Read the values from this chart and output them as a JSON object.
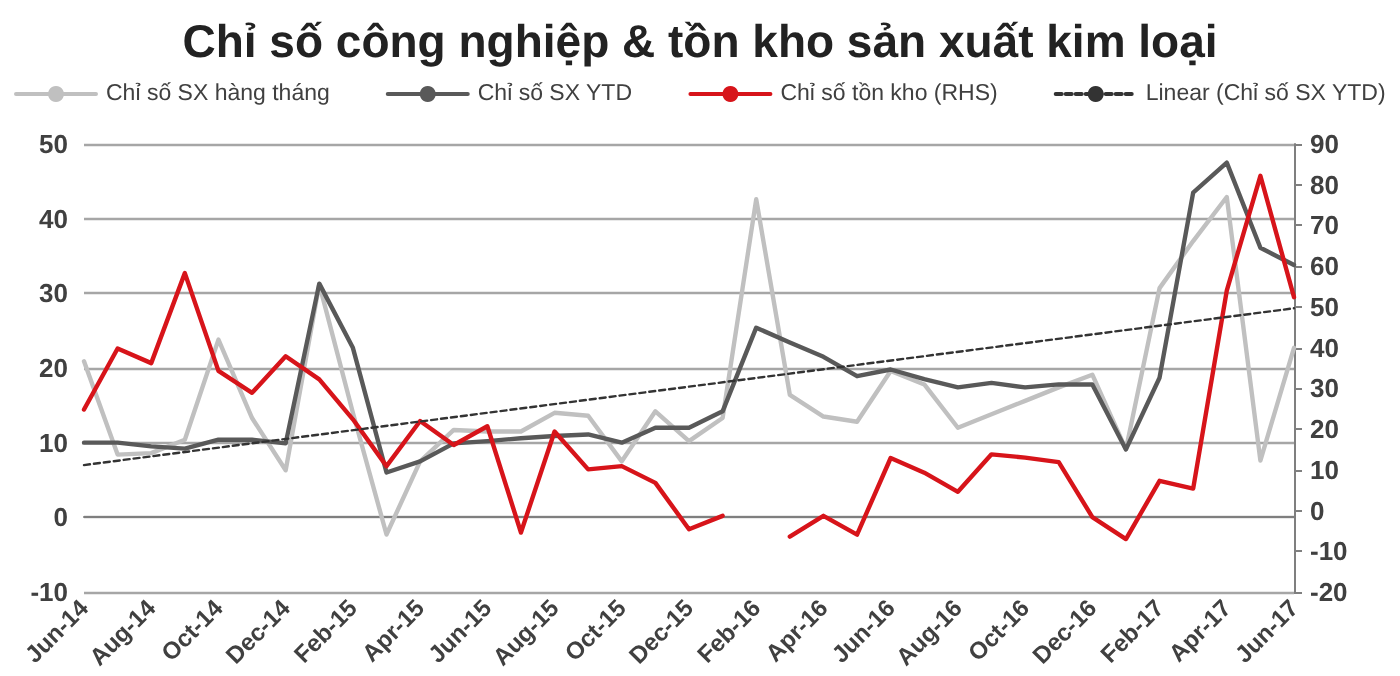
{
  "chart_data": {
    "type": "line",
    "title": "Chỉ số công nghiệp & tồn kho sản xuất kim loại",
    "categories": [
      "Jun-14",
      null,
      "Aug-14",
      null,
      "Oct-14",
      null,
      "Dec-14",
      null,
      "Feb-15",
      null,
      "Apr-15",
      null,
      "Jun-15",
      null,
      "Aug-15",
      null,
      "Oct-15",
      null,
      "Dec-15",
      null,
      "Feb-16",
      null,
      "Apr-16",
      null,
      "Jun-16",
      null,
      "Aug-16",
      null,
      "Oct-16",
      null,
      "Dec-16",
      null,
      "Feb-17",
      null,
      "Apr-17",
      null,
      "Jun-17"
    ],
    "series": [
      {
        "name": "Chỉ số SX hàng tháng",
        "color": "#c0c0c0",
        "values": [
          20.9,
          8.4,
          8.6,
          10.4,
          23.8,
          13.3,
          6.3,
          31.2,
          14,
          -2.3,
          7.5,
          11.7,
          11.5,
          11.5,
          14,
          13.6,
          7.5,
          14.2,
          10.2,
          13.3,
          42.6,
          16.4,
          13.5,
          12.8,
          19.6,
          17.8,
          12,
          13.8,
          15.6,
          17.4,
          19.1,
          9.1,
          30.7,
          37,
          42.9,
          7.6,
          22.7
        ]
      },
      {
        "name": "Chỉ số SX YTD",
        "color": "#595959",
        "values": [
          10,
          10,
          9.5,
          9.2,
          10.4,
          10.4,
          9.9,
          31.3,
          22.7,
          6,
          7.5,
          9.9,
          10.2,
          10.6,
          10.9,
          11.1,
          10,
          12,
          12,
          14.2,
          25.4,
          23.4,
          21.5,
          18.9,
          19.8,
          18.5,
          17.4,
          18,
          17.4,
          17.8,
          17.8,
          9.1,
          18.7,
          43.5,
          47.5,
          36.1,
          33.8
        ]
      },
      {
        "name": "Chỉ số tồn kho (RHS)",
        "color": "#d7141a",
        "axis": "y2",
        "values": [
          24.8,
          39.8,
          36.2,
          58.3,
          34.3,
          28.9,
          37.9,
          32.2,
          22.4,
          10.9,
          22,
          16.1,
          20.7,
          -5.4,
          19.4,
          10.1,
          10.9,
          6.8,
          -4.6,
          -1.3,
          null,
          -6.4,
          -1.3,
          -5.9,
          12.9,
          9.3,
          4.6,
          13.8,
          13,
          11.9,
          -1.6,
          -7,
          7.3,
          5.4,
          54,
          82.2,
          52.4
        ]
      },
      {
        "name": "Linear (Chỉ số SX YTD)",
        "color": "#333333",
        "line_style": "dotted",
        "x": [
          "Jun-14",
          "Jun-17"
        ],
        "values": [
          7,
          28
        ]
      }
    ],
    "ylim": [
      -10,
      50
    ],
    "yticks": [
      -10,
      0,
      10,
      20,
      30,
      40,
      50
    ],
    "y2lim": [
      -20,
      90
    ],
    "y2ticks": [
      -20,
      -10,
      0,
      10,
      20,
      30,
      40,
      50,
      60,
      70,
      80,
      90
    ],
    "grid": "y",
    "legend": "top",
    "marker": "none",
    "line_style": "solid"
  }
}
